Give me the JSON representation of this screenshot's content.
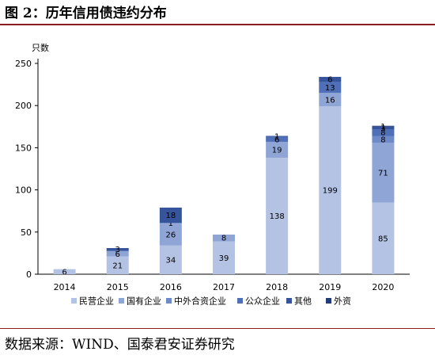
{
  "title": "图 2：历年信用债违约分布",
  "source": "数据来源：WIND、国泰君安证券研究",
  "chart_data": {
    "type": "bar",
    "stacked": true,
    "ylabel": "只数",
    "ylim": [
      0,
      250
    ],
    "yticks": [
      0,
      50,
      100,
      150,
      200,
      250
    ],
    "categories": [
      "2014",
      "2015",
      "2016",
      "2017",
      "2018",
      "2019",
      "2020"
    ],
    "legend_position": "bottom",
    "series": [
      {
        "name": "民营企业",
        "color": "#b4c3e3",
        "values": [
          6,
          21,
          34,
          39,
          138,
          199,
          85
        ],
        "labels": [
          "6",
          "21",
          "34",
          "39",
          "138",
          "199",
          "85"
        ]
      },
      {
        "name": "国有企业",
        "color": "#8fa5d6",
        "values": [
          0,
          6,
          26,
          8,
          19,
          16,
          71
        ],
        "labels": [
          "",
          "6",
          "26",
          "8",
          "19",
          "16",
          "71"
        ]
      },
      {
        "name": "中外合资企业",
        "color": "#6f8ac9",
        "values": [
          0,
          0,
          1,
          0,
          0,
          0,
          8
        ],
        "labels": [
          "",
          "",
          "1",
          "",
          "",
          "",
          "8"
        ]
      },
      {
        "name": "公众企业",
        "color": "#4f6fb8",
        "values": [
          0,
          1,
          0,
          0,
          6,
          13,
          8
        ],
        "labels": [
          "",
          "",
          "",
          "",
          "6",
          "13",
          "8"
        ]
      },
      {
        "name": "其他",
        "color": "#36549c",
        "values": [
          0,
          3,
          18,
          0,
          1,
          6,
          3
        ],
        "labels": [
          "",
          "3",
          "18",
          "",
          "1",
          "6",
          "3"
        ]
      },
      {
        "name": "外资",
        "color": "#233c78",
        "values": [
          0,
          0,
          0,
          0,
          0,
          0,
          1
        ],
        "labels": [
          "",
          "",
          "",
          "",
          "",
          "",
          "1"
        ]
      }
    ]
  }
}
